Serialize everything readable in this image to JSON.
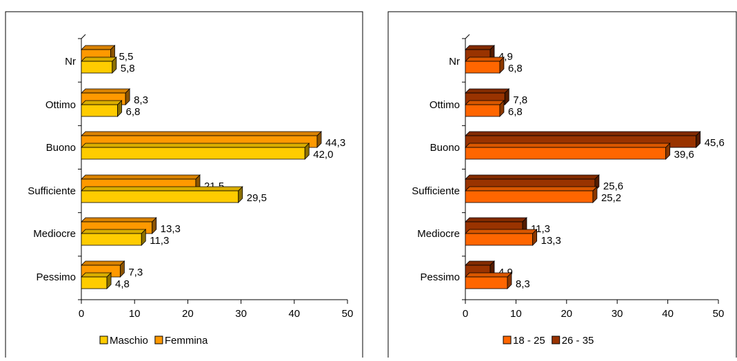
{
  "chart_data": [
    {
      "type": "bar",
      "orientation": "horizontal",
      "style": "3d-clustered",
      "categories": [
        "Nr",
        "Ottimo",
        "Buono",
        "Sufficiente",
        "Mediocre",
        "Pessimo"
      ],
      "series": [
        {
          "name": "Femmina",
          "color": "#FF9900",
          "values": [
            5.5,
            8.3,
            44.3,
            21.5,
            13.3,
            7.3
          ],
          "value_labels": [
            "5,5",
            "8,3",
            "44,3",
            "21,5",
            "13,3",
            "7,3"
          ]
        },
        {
          "name": "Maschio",
          "color": "#FFCC00",
          "values": [
            5.8,
            6.8,
            42.0,
            29.5,
            11.3,
            4.8
          ],
          "value_labels": [
            "5,8",
            "6,8",
            "42,0",
            "29,5",
            "11,3",
            "4,8"
          ]
        }
      ],
      "legend": [
        "Maschio",
        "Femmina"
      ],
      "legend_colors": [
        "#FFCC00",
        "#FF9900"
      ],
      "xlim": [
        0,
        50
      ],
      "xticks": [
        0,
        10,
        20,
        30,
        40,
        50
      ],
      "xlabel": "",
      "ylabel": "",
      "grid": false,
      "legend_position": "bottom"
    },
    {
      "type": "bar",
      "orientation": "horizontal",
      "style": "3d-clustered",
      "categories": [
        "Nr",
        "Ottimo",
        "Buono",
        "Sufficiente",
        "Mediocre",
        "Pessimo"
      ],
      "series": [
        {
          "name": "26 - 35",
          "color": "#993300",
          "values": [
            4.9,
            7.8,
            45.6,
            25.6,
            11.3,
            4.9
          ],
          "value_labels": [
            "4,9",
            "7,8",
            "45,6",
            "25,6",
            "11,3",
            "4,9"
          ]
        },
        {
          "name": "18 - 25",
          "color": "#FF6600",
          "values": [
            6.8,
            6.8,
            39.6,
            25.2,
            13.3,
            8.3
          ],
          "value_labels": [
            "6,8",
            "6,8",
            "39,6",
            "25,2",
            "13,3",
            "8,3"
          ]
        }
      ],
      "legend": [
        "18 - 25",
        "26 - 35"
      ],
      "legend_colors": [
        "#FF6600",
        "#993300"
      ],
      "xlim": [
        0,
        50
      ],
      "xticks": [
        0,
        10,
        20,
        30,
        40,
        50
      ],
      "xlabel": "",
      "ylabel": "",
      "grid": false,
      "legend_position": "bottom"
    }
  ]
}
